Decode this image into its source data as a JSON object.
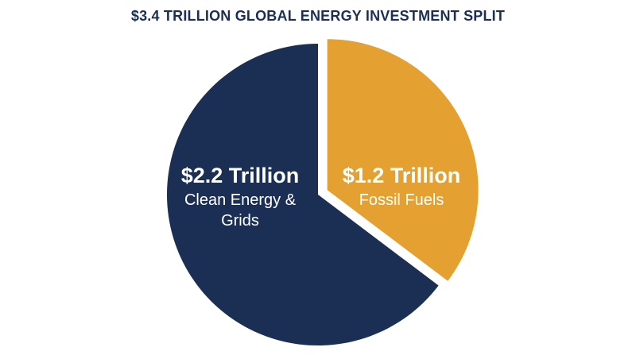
{
  "chart_data": {
    "type": "pie",
    "title": "$3.4 TRILLION GLOBAL ENERGY INVESTMENT SPLIT",
    "categories": [
      "Clean Energy & Grids",
      "Fossil Fuels"
    ],
    "values": [
      2.2,
      1.2
    ],
    "value_labels": [
      "$2.2 Trillion",
      "$1.2 Trillion"
    ],
    "colors": [
      "#1b2f55",
      "#e4a030"
    ]
  }
}
